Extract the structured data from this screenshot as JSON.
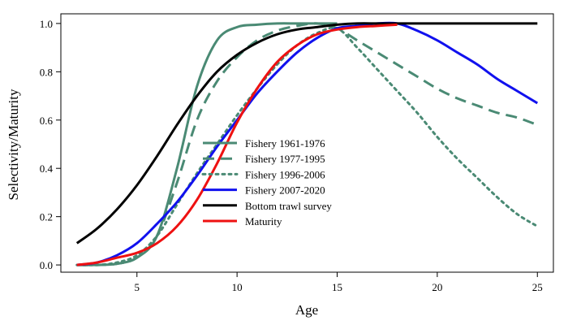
{
  "chart_data": {
    "type": "line",
    "xlabel": "Age",
    "ylabel": "Selectivity/Maturity",
    "xlim": [
      1.2,
      25.8
    ],
    "ylim": [
      -0.03,
      1.04
    ],
    "xticks": [
      5,
      10,
      15,
      20,
      25
    ],
    "yticks": [
      0.0,
      0.2,
      0.4,
      0.6,
      0.8,
      1.0
    ],
    "grid": false,
    "legend_position": "center",
    "series": [
      {
        "name": "Fishery 1961-1976",
        "color": "#4a8a74",
        "dash": "solid",
        "x": [
          2,
          3,
          4,
          5,
          6,
          7,
          8,
          9,
          10,
          11,
          12,
          13,
          14,
          15
        ],
        "y": [
          0.0,
          0.0,
          0.005,
          0.03,
          0.12,
          0.4,
          0.74,
          0.93,
          0.985,
          0.995,
          1.0,
          1.0,
          1.0,
          1.0
        ]
      },
      {
        "name": "Fishery 1977-1995",
        "color": "#4a8a74",
        "dash": "dashed",
        "x": [
          2,
          3,
          4,
          5,
          6,
          7,
          8,
          9,
          10,
          11,
          12,
          13,
          14,
          15,
          16,
          17,
          18,
          19,
          20,
          21,
          22,
          23,
          24,
          25
        ],
        "y": [
          0.0,
          0.0,
          0.005,
          0.03,
          0.12,
          0.34,
          0.6,
          0.76,
          0.86,
          0.93,
          0.97,
          0.99,
          1.0,
          0.98,
          0.93,
          0.88,
          0.83,
          0.78,
          0.73,
          0.69,
          0.66,
          0.63,
          0.61,
          0.58
        ]
      },
      {
        "name": "Fishery 1996-2006",
        "color": "#4a8a74",
        "dash": "dotted",
        "x": [
          2,
          3,
          4,
          5,
          6,
          7,
          8,
          9,
          10,
          11,
          12,
          13,
          14,
          15,
          16,
          17,
          18,
          19,
          20,
          21,
          22,
          23,
          24,
          25
        ],
        "y": [
          0.0,
          0.0,
          0.01,
          0.04,
          0.12,
          0.25,
          0.38,
          0.5,
          0.62,
          0.73,
          0.83,
          0.91,
          0.96,
          0.98,
          0.9,
          0.81,
          0.72,
          0.63,
          0.53,
          0.44,
          0.36,
          0.28,
          0.21,
          0.16
        ]
      },
      {
        "name": "Fishery 2007-2020",
        "color": "#1111ee",
        "dash": "solid",
        "x": [
          2,
          3,
          4,
          5,
          6,
          7,
          8,
          9,
          10,
          11,
          12,
          13,
          14,
          15,
          16,
          17,
          18,
          19,
          20,
          21,
          22,
          23,
          24,
          25
        ],
        "y": [
          0.0,
          0.01,
          0.04,
          0.09,
          0.17,
          0.26,
          0.37,
          0.49,
          0.6,
          0.71,
          0.8,
          0.88,
          0.94,
          0.98,
          0.99,
          1.0,
          1.0,
          0.97,
          0.93,
          0.88,
          0.83,
          0.77,
          0.72,
          0.67
        ]
      },
      {
        "name": "Bottom trawl survey",
        "color": "#000000",
        "dash": "solid",
        "x": [
          2,
          3,
          4,
          5,
          6,
          7,
          8,
          9,
          10,
          11,
          12,
          13,
          14,
          15,
          16,
          17,
          18,
          19,
          20,
          21,
          22,
          23,
          24,
          25
        ],
        "y": [
          0.09,
          0.15,
          0.23,
          0.33,
          0.45,
          0.58,
          0.7,
          0.8,
          0.87,
          0.92,
          0.955,
          0.975,
          0.985,
          0.995,
          1.0,
          1.0,
          1.0,
          1.0,
          1.0,
          1.0,
          1.0,
          1.0,
          1.0,
          1.0
        ]
      },
      {
        "name": "Maturity",
        "color": "#ee1111",
        "dash": "solid",
        "x": [
          2,
          3,
          4,
          5,
          6,
          7,
          8,
          9,
          10,
          11,
          12,
          13,
          14,
          15,
          16,
          17,
          18
        ],
        "y": [
          0.0,
          0.01,
          0.03,
          0.05,
          0.09,
          0.16,
          0.27,
          0.42,
          0.59,
          0.73,
          0.84,
          0.91,
          0.955,
          0.975,
          0.985,
          0.99,
          0.995
        ]
      }
    ]
  }
}
